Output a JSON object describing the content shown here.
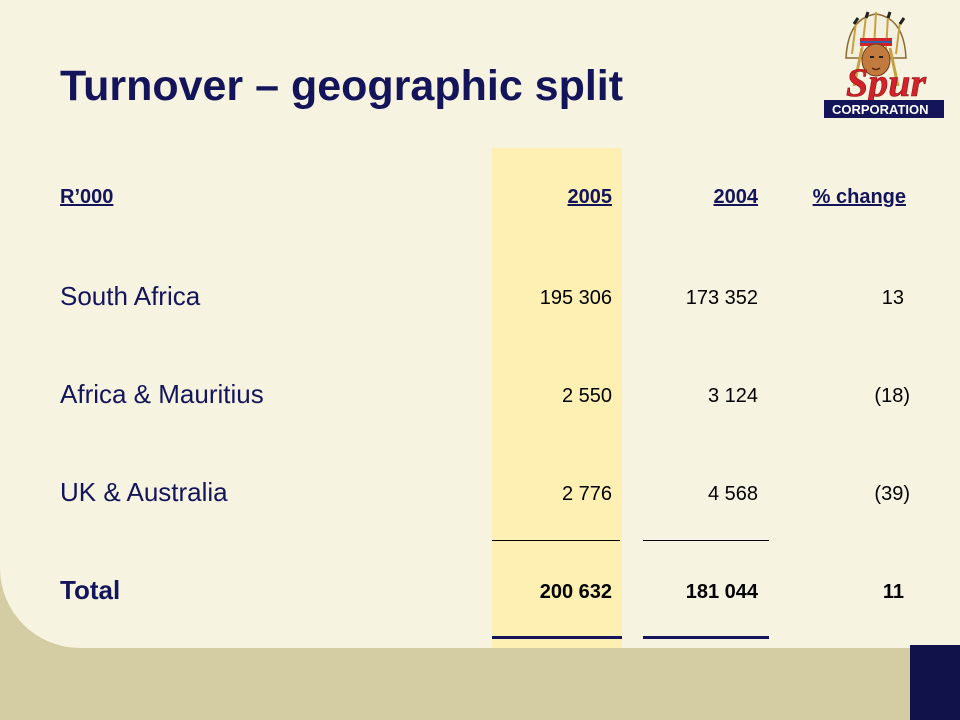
{
  "slide": {
    "title": "Turnover – geographic split"
  },
  "logo": {
    "word": "Spur",
    "tagline": "CORPORATION"
  },
  "table": {
    "headers": {
      "label": "R’000",
      "col_2005": "2005",
      "col_2004": "2004",
      "col_change": "% change"
    },
    "rows": [
      {
        "region": "South Africa",
        "v2005": "195 306",
        "v2004": "173 352",
        "change": "13"
      },
      {
        "region": "Africa & Mauritius",
        "v2005": "2 550",
        "v2004": "3 124",
        "change": "(18)"
      },
      {
        "region": "UK & Australia",
        "v2005": "2 776",
        "v2004": "4 568",
        "change": "(39)"
      }
    ],
    "total": {
      "label": "Total",
      "v2005": "200 632",
      "v2004": "181 044",
      "change": "11"
    }
  },
  "colors": {
    "background": "#d4cca2",
    "panel": "#f6f3e1",
    "highlight_column": "#fdf0b2",
    "title_navy": "#14145a",
    "logo_red": "#d2232a"
  }
}
